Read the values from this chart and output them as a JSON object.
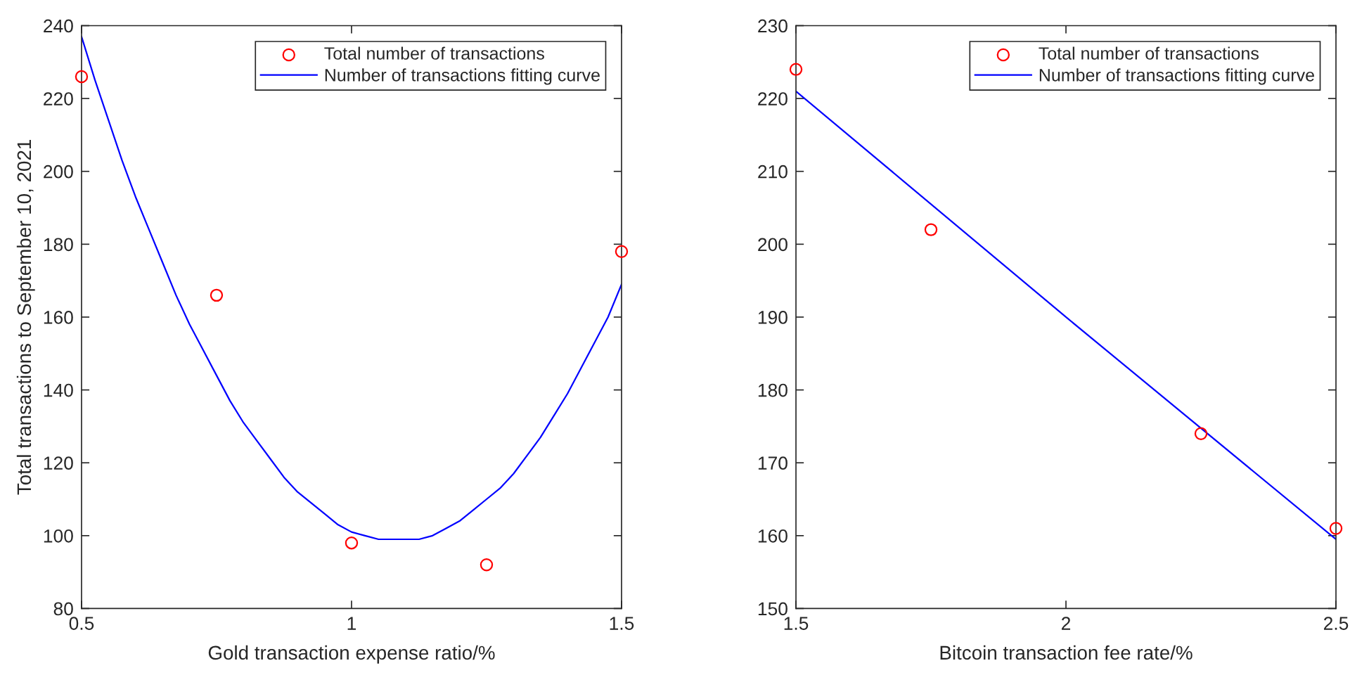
{
  "chart_data": [
    {
      "type": "scatter",
      "xlabel": "Gold transaction expense ratio/%",
      "ylabel": "Total transactions to September 10, 2021",
      "xlim": [
        0.5,
        1.5
      ],
      "xticks": [
        0.5,
        1,
        1.5
      ],
      "ylim": [
        80,
        240
      ],
      "yticks": [
        80,
        100,
        120,
        140,
        160,
        180,
        200,
        220,
        240
      ],
      "legend": "top right",
      "series": [
        {
          "name": "Total number of transactions",
          "marker": "circle",
          "color": "#ff0000",
          "x": [
            0.5,
            0.75,
            1,
            1.25,
            1.5
          ],
          "values": [
            226,
            166,
            98,
            92,
            178
          ]
        },
        {
          "name": "Number of transactions fitting curve",
          "type": "line",
          "color": "#0000ff",
          "x": [
            0.5,
            0.525,
            0.55,
            0.575,
            0.6,
            0.625,
            0.65,
            0.675,
            0.7,
            0.725,
            0.75,
            0.775,
            0.8,
            0.825,
            0.85,
            0.875,
            0.9,
            0.925,
            0.95,
            0.975,
            1,
            1.025,
            1.05,
            1.075,
            1.1,
            1.125,
            1.15,
            1.175,
            1.2,
            1.225,
            1.25,
            1.275,
            1.3,
            1.325,
            1.35,
            1.375,
            1.4,
            1.425,
            1.45,
            1.475,
            1.5
          ],
          "values": [
            237,
            225,
            214,
            203,
            193,
            184,
            175,
            166,
            158,
            151,
            144,
            137,
            131,
            126,
            121,
            116,
            112,
            109,
            106,
            103,
            101,
            100,
            99,
            99,
            99,
            99,
            100,
            102,
            104,
            107,
            110,
            113,
            117,
            122,
            127,
            133,
            139,
            146,
            153,
            160,
            169
          ]
        }
      ]
    },
    {
      "type": "scatter",
      "xlabel": "Bitcoin transaction fee rate/%",
      "xlim": [
        1.5,
        2.5
      ],
      "xticks": [
        1.5,
        2,
        2.5
      ],
      "ylim": [
        150,
        230
      ],
      "yticks": [
        150,
        160,
        170,
        180,
        190,
        200,
        210,
        220,
        230
      ],
      "legend": "top right",
      "series": [
        {
          "name": "Total number of transactions",
          "marker": "circle",
          "color": "#ff0000",
          "x": [
            1.5,
            1.75,
            2.25,
            2.5
          ],
          "values": [
            224,
            202,
            174,
            161
          ]
        },
        {
          "name": "Number of transactions fitting curve",
          "type": "line",
          "color": "#0000ff",
          "x": [
            1.5,
            2,
            2.5
          ],
          "values": [
            221,
            190,
            159.5
          ]
        }
      ]
    }
  ]
}
